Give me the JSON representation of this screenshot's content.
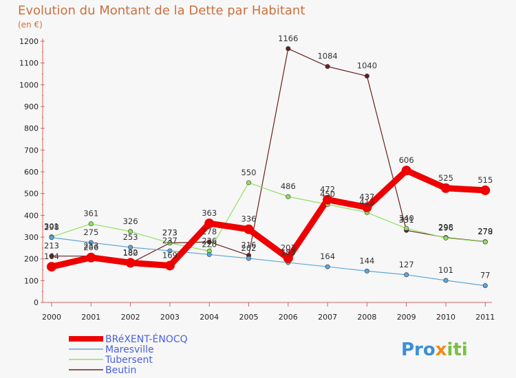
{
  "chart_data": {
    "type": "line",
    "title": "Evolution du Montant de la Dette par Habitant",
    "unit": "(en €)",
    "x": [
      "2000",
      "2001",
      "2002",
      "2003",
      "2004",
      "2005",
      "2006",
      "2007",
      "2008",
      "2009",
      "2010",
      "2011"
    ],
    "ylim": [
      0,
      1200
    ],
    "yticks": [
      0,
      100,
      200,
      300,
      400,
      500,
      600,
      700,
      800,
      900,
      1000,
      1100,
      1200
    ],
    "grid": false,
    "series": [
      {
        "name": "Beutin",
        "color": "#6b1e1e",
        "values": [
          213,
          213,
          180,
          273,
          278,
          216,
          1166,
          1084,
          1040,
          331,
          298,
          279
        ]
      },
      {
        "name": "Tubersent",
        "color": "#90e060",
        "values": [
          301,
          361,
          326,
          273,
          236,
          550,
          486,
          450,
          413,
          340,
          296,
          278
        ]
      },
      {
        "name": "Maresville",
        "color": "#5ea6d8",
        "values": [
          298,
          275,
          253,
          237,
          220,
          202,
          183,
          164,
          144,
          127,
          101,
          77
        ]
      },
      {
        "name": "BRéXENT-ÉNOCQ",
        "color": "#ee0000",
        "values": [
          164,
          206,
          182,
          169,
          363,
          336,
          203,
          472,
          437,
          606,
          525,
          515
        ]
      }
    ],
    "legend": [
      "BRéXENT-ÉNOCQ",
      "Maresville",
      "Tubersent",
      "Beutin"
    ]
  },
  "brand": {
    "name": "Proxiti"
  }
}
